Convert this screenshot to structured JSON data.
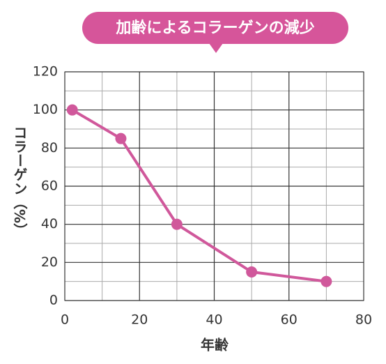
{
  "chart_data": {
    "type": "line",
    "title": "加齢によるコラーゲンの減少",
    "x": [
      2,
      15,
      30,
      50,
      70
    ],
    "values": [
      100,
      85,
      40,
      15,
      10
    ],
    "color": "#d0589b",
    "xlabel": "年齢",
    "ylabel": "コラーゲン（%）",
    "xlim": [
      0,
      80
    ],
    "xticks": [
      0,
      20,
      40,
      60,
      80
    ],
    "ylim": [
      0,
      120
    ],
    "yticks": [
      0,
      20,
      40,
      60,
      80,
      100,
      120
    ],
    "minor_xticks": [
      10,
      30,
      50,
      70
    ],
    "minor_yticks": [
      10,
      30,
      50,
      70,
      90,
      110
    ],
    "grid": true
  }
}
